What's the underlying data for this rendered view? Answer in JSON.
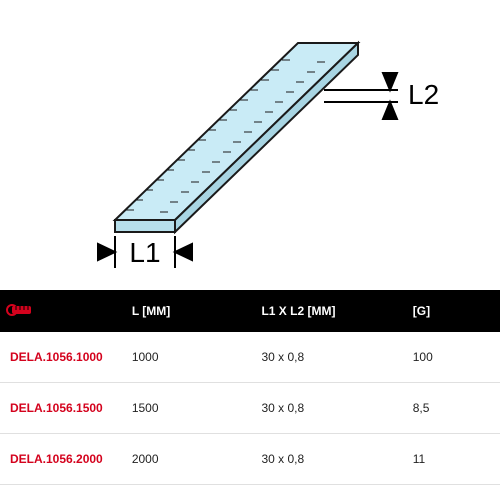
{
  "colors": {
    "ruler_fill": "#c9ebf6",
    "ruler_stroke": "#1a1a1a",
    "label_text": "#000000",
    "header_bg": "#000000",
    "header_fg": "#ffffff",
    "row_border": "#e0e0e0",
    "ref_color": "#d4021d",
    "icon_color": "#d4021d"
  },
  "diagram": {
    "l1_label": "L1",
    "l2_label": "L2"
  },
  "table": {
    "headers": {
      "icon": "ruler-icon",
      "l": "L [MM]",
      "l1l2": "L1 X L2 [MM]",
      "g": "[G]"
    },
    "rows": [
      {
        "ref": "DELA.1056.1000",
        "l": "1000",
        "l1l2": "30 x 0,8",
        "g": "100"
      },
      {
        "ref": "DELA.1056.1500",
        "l": "1500",
        "l1l2": "30 x 0,8",
        "g": "8,5"
      },
      {
        "ref": "DELA.1056.2000",
        "l": "2000",
        "l1l2": "30 x 0,8",
        "g": "11"
      }
    ]
  }
}
